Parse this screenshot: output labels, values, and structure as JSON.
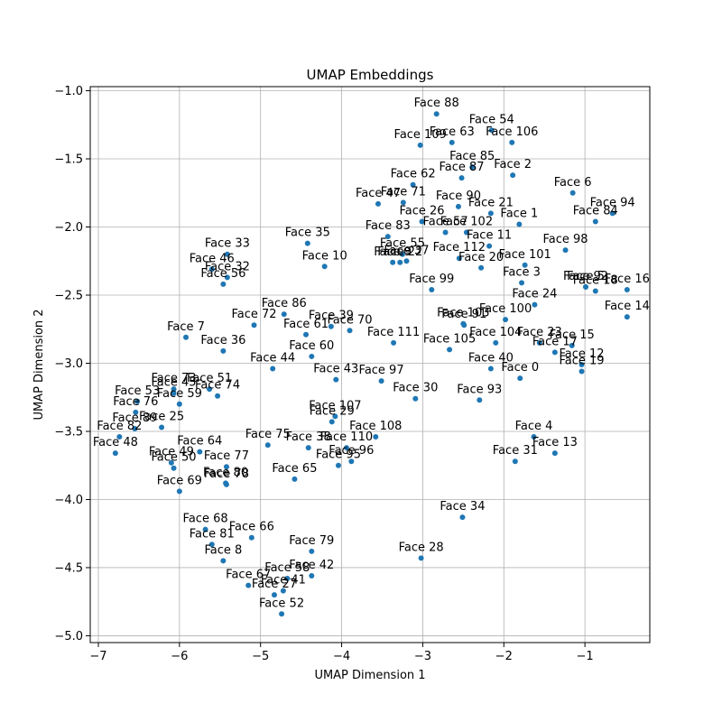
{
  "chart_data": {
    "type": "scatter",
    "title": "UMAP Embeddings",
    "xlabel": "UMAP Dimension 1",
    "ylabel": "UMAP Dimension 2",
    "xlim": [
      -7.1,
      -0.2
    ],
    "ylim": [
      -5.05,
      -0.97
    ],
    "xticks": [
      -7,
      -6,
      -5,
      -4,
      -3,
      -2,
      -1
    ],
    "yticks": [
      -1.0,
      -1.5,
      -2.0,
      -2.5,
      -3.0,
      -3.5,
      -4.0,
      -4.5,
      -5.0
    ],
    "xtick_labels": [
      "−7",
      "−6",
      "−5",
      "−4",
      "−3",
      "−2",
      "−1"
    ],
    "ytick_labels": [
      "−1.0",
      "−1.5",
      "−2.0",
      "−2.5",
      "−3.0",
      "−3.5",
      "−4.0",
      "−4.5",
      "−5.0"
    ],
    "grid": true,
    "marker_color": "#1f77b4",
    "points": [
      {
        "label": "Face 0",
        "x": -1.8,
        "y": -3.11
      },
      {
        "label": "Face 1",
        "x": -1.81,
        "y": -1.98
      },
      {
        "label": "Face 2",
        "x": -1.89,
        "y": -1.62
      },
      {
        "label": "Face 3",
        "x": -1.78,
        "y": -2.41
      },
      {
        "label": "Face 4",
        "x": -1.63,
        "y": -3.54
      },
      {
        "label": "Face 5",
        "x": -0.99,
        "y": -2.44
      },
      {
        "label": "Face 6",
        "x": -1.15,
        "y": -1.75
      },
      {
        "label": "Face 7",
        "x": -5.92,
        "y": -2.81
      },
      {
        "label": "Face 8",
        "x": -5.46,
        "y": -4.45
      },
      {
        "label": "Face 9",
        "x": -3.37,
        "y": -2.26
      },
      {
        "label": "Face 10",
        "x": -4.21,
        "y": -2.29
      },
      {
        "label": "Face 11",
        "x": -2.18,
        "y": -2.14
      },
      {
        "label": "Face 12",
        "x": -1.04,
        "y": -3.01
      },
      {
        "label": "Face 13",
        "x": -1.37,
        "y": -3.66
      },
      {
        "label": "Face 14",
        "x": -0.48,
        "y": -2.66
      },
      {
        "label": "Face 15",
        "x": -1.16,
        "y": -2.87
      },
      {
        "label": "Face 16",
        "x": -0.48,
        "y": -2.46
      },
      {
        "label": "Face 17",
        "x": -1.37,
        "y": -2.92
      },
      {
        "label": "Face 18",
        "x": -0.87,
        "y": -2.47
      },
      {
        "label": "Face 19",
        "x": -1.04,
        "y": -3.06
      },
      {
        "label": "Face 20",
        "x": -2.28,
        "y": -2.3
      },
      {
        "label": "Face 21",
        "x": -2.16,
        "y": -1.9
      },
      {
        "label": "Face 22",
        "x": -3.28,
        "y": -2.26
      },
      {
        "label": "Face 23",
        "x": -1.56,
        "y": -2.85
      },
      {
        "label": "Face 24",
        "x": -1.62,
        "y": -2.57
      },
      {
        "label": "Face 25",
        "x": -6.22,
        "y": -3.47
      },
      {
        "label": "Face 26",
        "x": -3.01,
        "y": -1.96
      },
      {
        "label": "Face 27",
        "x": -4.83,
        "y": -4.7
      },
      {
        "label": "Face 28",
        "x": -3.02,
        "y": -4.43
      },
      {
        "label": "Face 29",
        "x": -4.12,
        "y": -3.43
      },
      {
        "label": "Face 30",
        "x": -3.09,
        "y": -3.26
      },
      {
        "label": "Face 31",
        "x": -1.86,
        "y": -3.72
      },
      {
        "label": "Face 32",
        "x": -5.41,
        "y": -2.37
      },
      {
        "label": "Face 33",
        "x": -5.41,
        "y": -2.2
      },
      {
        "label": "Face 34",
        "x": -2.51,
        "y": -4.13
      },
      {
        "label": "Face 35",
        "x": -4.42,
        "y": -2.12
      },
      {
        "label": "Face 36",
        "x": -5.46,
        "y": -2.91
      },
      {
        "label": "Face 37",
        "x": -3.2,
        "y": -2.25
      },
      {
        "label": "Face 38",
        "x": -4.41,
        "y": -3.62
      },
      {
        "label": "Face 39",
        "x": -4.13,
        "y": -2.73
      },
      {
        "label": "Face 40",
        "x": -2.16,
        "y": -3.04
      },
      {
        "label": "Face 41",
        "x": -4.72,
        "y": -4.67
      },
      {
        "label": "Face 42",
        "x": -4.37,
        "y": -4.56
      },
      {
        "label": "Face 43",
        "x": -4.07,
        "y": -3.12
      },
      {
        "label": "Face 44",
        "x": -4.85,
        "y": -3.04
      },
      {
        "label": "Face 45",
        "x": -6.07,
        "y": -3.22
      },
      {
        "label": "Face 46",
        "x": -5.6,
        "y": -2.31
      },
      {
        "label": "Face 47",
        "x": -3.55,
        "y": -1.83
      },
      {
        "label": "Face 48",
        "x": -6.79,
        "y": -3.66
      },
      {
        "label": "Face 49",
        "x": -6.1,
        "y": -3.73
      },
      {
        "label": "Face 50",
        "x": -6.07,
        "y": -3.77
      },
      {
        "label": "Face 51",
        "x": -5.63,
        "y": -3.19
      },
      {
        "label": "Face 52",
        "x": -4.74,
        "y": -4.84
      },
      {
        "label": "Face 53",
        "x": -6.52,
        "y": -3.28
      },
      {
        "label": "Face 54",
        "x": -2.15,
        "y": -1.29
      },
      {
        "label": "Face 55",
        "x": -3.25,
        "y": -2.2
      },
      {
        "label": "Face 56",
        "x": -5.46,
        "y": -2.42
      },
      {
        "label": "Face 57",
        "x": -2.72,
        "y": -2.04
      },
      {
        "label": "Face 58",
        "x": -4.67,
        "y": -4.58
      },
      {
        "label": "Face 59",
        "x": -6.0,
        "y": -3.3
      },
      {
        "label": "Face 60",
        "x": -4.37,
        "y": -2.95
      },
      {
        "label": "Face 61",
        "x": -4.44,
        "y": -2.79
      },
      {
        "label": "Face 62",
        "x": -3.12,
        "y": -1.69
      },
      {
        "label": "Face 63",
        "x": -2.64,
        "y": -1.38
      },
      {
        "label": "Face 64",
        "x": -5.75,
        "y": -3.65
      },
      {
        "label": "Face 65",
        "x": -4.58,
        "y": -3.85
      },
      {
        "label": "Face 66",
        "x": -5.11,
        "y": -4.28
      },
      {
        "label": "Face 67",
        "x": -5.15,
        "y": -4.63
      },
      {
        "label": "Face 68",
        "x": -5.68,
        "y": -4.22
      },
      {
        "label": "Face 69",
        "x": -6.0,
        "y": -3.94
      },
      {
        "label": "Face 70",
        "x": -3.9,
        "y": -2.76
      },
      {
        "label": "Face 71",
        "x": -3.24,
        "y": -1.82
      },
      {
        "label": "Face 72",
        "x": -5.08,
        "y": -2.72
      },
      {
        "label": "Face 73",
        "x": -6.07,
        "y": -3.19
      },
      {
        "label": "Face 74",
        "x": -5.53,
        "y": -3.24
      },
      {
        "label": "Face 75",
        "x": -4.91,
        "y": -3.6
      },
      {
        "label": "Face 76",
        "x": -6.54,
        "y": -3.36
      },
      {
        "label": "Face 77",
        "x": -5.42,
        "y": -3.76
      },
      {
        "label": "Face 78",
        "x": -5.42,
        "y": -3.89
      },
      {
        "label": "Face 79",
        "x": -4.37,
        "y": -4.38
      },
      {
        "label": "Face 80",
        "x": -5.43,
        "y": -3.88
      },
      {
        "label": "Face 81",
        "x": -5.6,
        "y": -4.33
      },
      {
        "label": "Face 82",
        "x": -6.74,
        "y": -3.54
      },
      {
        "label": "Face 83",
        "x": -3.43,
        "y": -2.07
      },
      {
        "label": "Face 84",
        "x": -0.87,
        "y": -1.96
      },
      {
        "label": "Face 85",
        "x": -2.39,
        "y": -1.56
      },
      {
        "label": "Face 86",
        "x": -4.71,
        "y": -2.64
      },
      {
        "label": "Face 87",
        "x": -2.52,
        "y": -1.64
      },
      {
        "label": "Face 88",
        "x": -2.83,
        "y": -1.17
      },
      {
        "label": "Face 89",
        "x": -6.55,
        "y": -3.48
      },
      {
        "label": "Face 90",
        "x": -2.56,
        "y": -1.85
      },
      {
        "label": "Face 91",
        "x": -2.49,
        "y": -2.72
      },
      {
        "label": "Face 92",
        "x": -0.99,
        "y": -2.44
      },
      {
        "label": "Face 93",
        "x": -2.3,
        "y": -3.27
      },
      {
        "label": "Face 94",
        "x": -0.66,
        "y": -1.9
      },
      {
        "label": "Face 95",
        "x": -4.04,
        "y": -3.75
      },
      {
        "label": "Face 96",
        "x": -3.88,
        "y": -3.72
      },
      {
        "label": "Face 97",
        "x": -3.51,
        "y": -3.13
      },
      {
        "label": "Face 98",
        "x": -1.24,
        "y": -2.17
      },
      {
        "label": "Face 99",
        "x": -2.89,
        "y": -2.46
      },
      {
        "label": "Face 100",
        "x": -1.98,
        "y": -2.68
      },
      {
        "label": "Face 101",
        "x": -1.74,
        "y": -2.28
      },
      {
        "label": "Face 102",
        "x": -2.46,
        "y": -2.04
      },
      {
        "label": "Face 103",
        "x": -2.5,
        "y": -2.71
      },
      {
        "label": "Face 104",
        "x": -2.1,
        "y": -2.85
      },
      {
        "label": "Face 105",
        "x": -2.67,
        "y": -2.9
      },
      {
        "label": "Face 106",
        "x": -1.9,
        "y": -1.38
      },
      {
        "label": "Face 107",
        "x": -4.08,
        "y": -3.39
      },
      {
        "label": "Face 108",
        "x": -3.58,
        "y": -3.54
      },
      {
        "label": "Face 109",
        "x": -3.03,
        "y": -1.4
      },
      {
        "label": "Face 110",
        "x": -3.94,
        "y": -3.62
      },
      {
        "label": "Face 111",
        "x": -3.36,
        "y": -2.85
      },
      {
        "label": "Face 112",
        "x": -2.55,
        "y": -2.23
      }
    ]
  }
}
